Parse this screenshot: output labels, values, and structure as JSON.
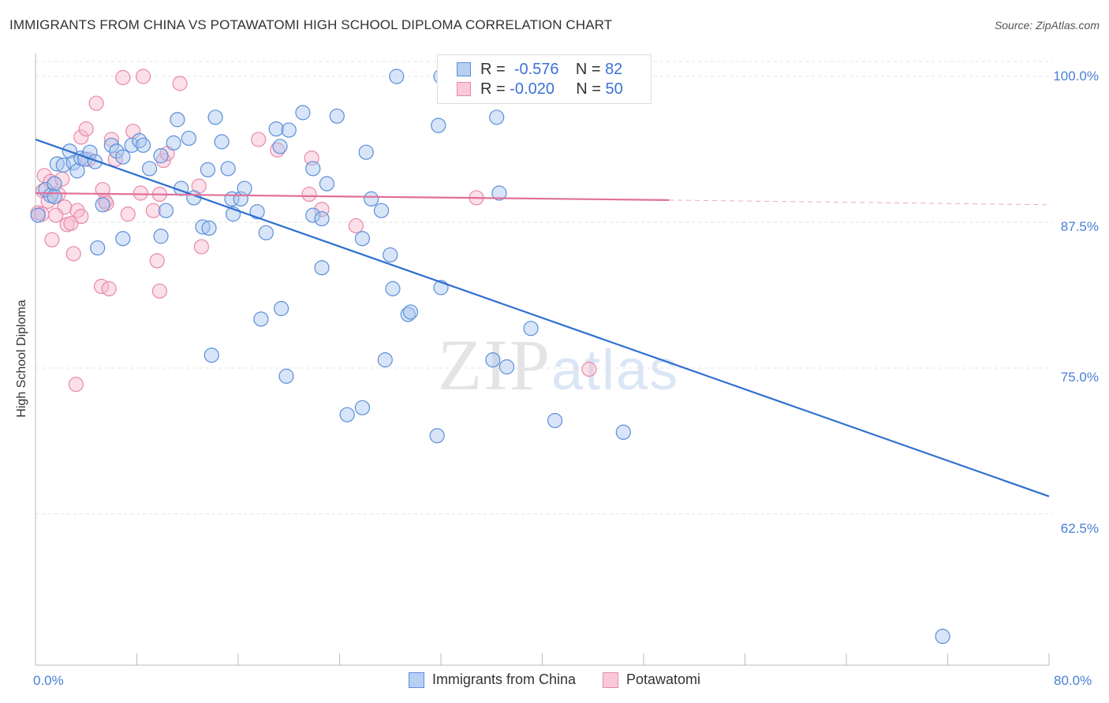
{
  "title": "IMMIGRANTS FROM CHINA VS POTAWATOMI HIGH SCHOOL DIPLOMA CORRELATION CHART",
  "source": "Source: ZipAtlas.com",
  "watermark": {
    "zip": "ZIP",
    "atlas": "atlas"
  },
  "legend": {
    "r_label": "R =",
    "n_label": "N =",
    "series1": {
      "r": "-0.576",
      "n": "82"
    },
    "series2": {
      "r": "-0.020",
      "n": "50"
    }
  },
  "colors": {
    "blue_fill": "#a9c6ef",
    "blue_stroke": "#5b8fd8",
    "blue_line": "#2f6fd0",
    "pink_fill": "#f6b9cf",
    "pink_stroke": "#e889a9",
    "pink_line": "#e0709a",
    "tick_text": "#4a7fd4"
  },
  "chart_data": {
    "type": "scatter",
    "title": "IMMIGRANTS FROM CHINA VS POTAWATOMI HIGH SCHOOL DIPLOMA CORRELATION CHART",
    "xlabel": "",
    "ylabel": "High School Diploma",
    "xlim": [
      0,
      80
    ],
    "ylim": [
      51,
      102
    ],
    "x_tick_labels": [
      "0.0%",
      "80.0%"
    ],
    "y_ticks": [
      62.5,
      75.0,
      87.5,
      100.0
    ],
    "y_tick_labels": [
      "62.5%",
      "75.0%",
      "87.5%",
      "100.0%"
    ],
    "legend_position": "bottom",
    "series": [
      {
        "name": "Immigrants from China",
        "color": "#5b8fd8",
        "trend": {
          "x": [
            0,
            80
          ],
          "y": [
            94.6,
            64.0
          ]
        },
        "points": [
          [
            0.2,
            88.1
          ],
          [
            0.8,
            90.3
          ],
          [
            1.2,
            89.8
          ],
          [
            1.5,
            90.8
          ],
          [
            1.5,
            89.7
          ],
          [
            1.7,
            92.5
          ],
          [
            2.2,
            92.4
          ],
          [
            2.7,
            93.6
          ],
          [
            3.0,
            92.6
          ],
          [
            3.3,
            91.9
          ],
          [
            3.6,
            93.0
          ],
          [
            3.9,
            92.9
          ],
          [
            4.3,
            93.5
          ],
          [
            4.7,
            92.7
          ],
          [
            5.3,
            89.0
          ],
          [
            6.0,
            94.1
          ],
          [
            6.4,
            93.6
          ],
          [
            6.9,
            93.1
          ],
          [
            7.6,
            94.1
          ],
          [
            8.2,
            94.5
          ],
          [
            8.5,
            94.1
          ],
          [
            9.0,
            92.1
          ],
          [
            9.9,
            93.2
          ],
          [
            10.3,
            88.5
          ],
          [
            10.9,
            94.3
          ],
          [
            11.2,
            96.3
          ],
          [
            11.5,
            90.4
          ],
          [
            12.1,
            94.7
          ],
          [
            12.5,
            89.6
          ],
          [
            13.2,
            87.1
          ],
          [
            13.7,
            87.0
          ],
          [
            13.6,
            92.0
          ],
          [
            14.2,
            96.5
          ],
          [
            14.7,
            94.4
          ],
          [
            15.2,
            92.1
          ],
          [
            15.5,
            89.5
          ],
          [
            15.6,
            88.2
          ],
          [
            16.2,
            89.5
          ],
          [
            16.5,
            90.4
          ],
          [
            17.5,
            88.4
          ],
          [
            18.2,
            86.6
          ],
          [
            19.0,
            95.5
          ],
          [
            19.3,
            94.0
          ],
          [
            20.0,
            95.4
          ],
          [
            21.1,
            96.9
          ],
          [
            21.9,
            92.1
          ],
          [
            21.9,
            88.1
          ],
          [
            22.6,
            87.8
          ],
          [
            23.0,
            90.8
          ],
          [
            23.8,
            96.6
          ],
          [
            26.1,
            93.5
          ],
          [
            26.5,
            89.5
          ],
          [
            27.3,
            88.5
          ],
          [
            28.5,
            100.0
          ],
          [
            32.0,
            100.0
          ],
          [
            36.4,
            96.5
          ],
          [
            36.6,
            90.0
          ],
          [
            31.8,
            95.8
          ],
          [
            25.8,
            86.1
          ],
          [
            28.0,
            84.7
          ],
          [
            28.2,
            81.8
          ],
          [
            32.0,
            81.9
          ],
          [
            29.4,
            79.6
          ],
          [
            29.6,
            79.8
          ],
          [
            22.6,
            83.6
          ],
          [
            19.4,
            80.1
          ],
          [
            17.8,
            79.2
          ],
          [
            19.8,
            74.3
          ],
          [
            27.6,
            75.7
          ],
          [
            36.1,
            75.7
          ],
          [
            37.2,
            75.1
          ],
          [
            39.1,
            78.4
          ],
          [
            13.9,
            76.1
          ],
          [
            24.6,
            71.0
          ],
          [
            25.8,
            71.6
          ],
          [
            31.7,
            69.2
          ],
          [
            41.0,
            70.5
          ],
          [
            46.4,
            69.5
          ],
          [
            71.6,
            52.0
          ],
          [
            4.9,
            85.3
          ],
          [
            6.9,
            86.1
          ],
          [
            9.9,
            86.3
          ]
        ]
      },
      {
        "name": "Potawatomi",
        "color": "#e889a9",
        "trend": {
          "x": [
            0,
            50
          ],
          "y": [
            90.0,
            89.4
          ]
        },
        "trend_dashed": {
          "x": [
            50,
            80
          ],
          "y": [
            89.4,
            89.0
          ]
        },
        "points": [
          [
            0.2,
            88.3
          ],
          [
            0.6,
            90.2
          ],
          [
            0.7,
            91.5
          ],
          [
            1.0,
            89.3
          ],
          [
            1.2,
            91.0
          ],
          [
            1.3,
            86.0
          ],
          [
            1.8,
            89.9
          ],
          [
            2.1,
            91.2
          ],
          [
            2.3,
            88.8
          ],
          [
            2.5,
            87.3
          ],
          [
            2.8,
            87.4
          ],
          [
            3.0,
            84.8
          ],
          [
            3.3,
            88.5
          ],
          [
            3.6,
            88.0
          ],
          [
            3.6,
            94.8
          ],
          [
            4.0,
            95.5
          ],
          [
            4.2,
            92.9
          ],
          [
            4.8,
            97.7
          ],
          [
            5.3,
            90.3
          ],
          [
            5.5,
            89.3
          ],
          [
            5.6,
            89.1
          ],
          [
            6.0,
            94.6
          ],
          [
            6.3,
            92.9
          ],
          [
            7.3,
            88.2
          ],
          [
            7.7,
            95.3
          ],
          [
            8.3,
            90.0
          ],
          [
            9.3,
            88.5
          ],
          [
            9.6,
            84.2
          ],
          [
            9.8,
            89.9
          ],
          [
            10.1,
            92.8
          ],
          [
            10.4,
            93.4
          ],
          [
            11.4,
            99.4
          ],
          [
            13.1,
            85.4
          ],
          [
            12.9,
            90.6
          ],
          [
            17.6,
            94.6
          ],
          [
            19.1,
            93.7
          ],
          [
            21.6,
            89.9
          ],
          [
            21.8,
            93.0
          ],
          [
            22.6,
            88.6
          ],
          [
            25.3,
            87.2
          ],
          [
            34.8,
            89.6
          ],
          [
            43.7,
            74.9
          ],
          [
            5.2,
            82.0
          ],
          [
            5.8,
            81.8
          ],
          [
            9.8,
            81.6
          ],
          [
            3.2,
            73.6
          ],
          [
            6.9,
            99.9
          ],
          [
            8.5,
            100.0
          ],
          [
            0.5,
            88.2
          ],
          [
            1.6,
            88.1
          ]
        ]
      }
    ]
  }
}
